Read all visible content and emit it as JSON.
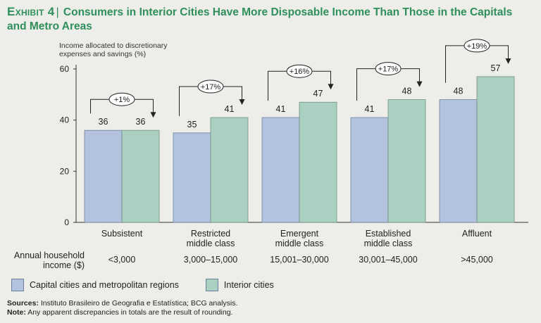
{
  "title": {
    "exhibit": "Exhibit 4",
    "text": "Consumers in Interior Cities Have More Disposable Income Than Those in the Capitals and Metro Areas"
  },
  "chart_data": {
    "type": "bar",
    "ylabel": "Income allocated to discretionary expenses and savings (%)",
    "ylim": [
      0,
      60
    ],
    "yticks": [
      0,
      20,
      40,
      60
    ],
    "categories": [
      "Subsistent",
      "Restricted middle class",
      "Emergent middle class",
      "Established middle class",
      "Affluent"
    ],
    "series": [
      {
        "name": "Capital cities and metropolitan regions",
        "values": [
          36,
          35,
          41,
          41,
          48
        ],
        "color": "#b3c3dd"
      },
      {
        "name": "Interior cities",
        "values": [
          36,
          41,
          47,
          48,
          57
        ],
        "color": "#a9d0c0"
      }
    ],
    "annotations": [
      "+1%",
      "+17%",
      "+16%",
      "+17%",
      "+19%"
    ],
    "row_label": "Annual household income ($)",
    "income_ranges": [
      "<3,000",
      "3,000–15,000",
      "15,001–30,000",
      "30,001–45,000",
      ">45,000"
    ],
    "legend_position": "bottom-left",
    "grid": false
  },
  "footer": {
    "sources_label": "Sources:",
    "sources_text": "Instituto Brasileiro de Geografia e Estatística; BCG analysis.",
    "note_label": "Note:",
    "note_text": "Any apparent discrepancies in totals are the result of rounding."
  },
  "colors": {
    "title": "#2f8f5b",
    "capital": "#b3c3dd",
    "interior": "#a9d0c0",
    "background": "#edeee9"
  }
}
